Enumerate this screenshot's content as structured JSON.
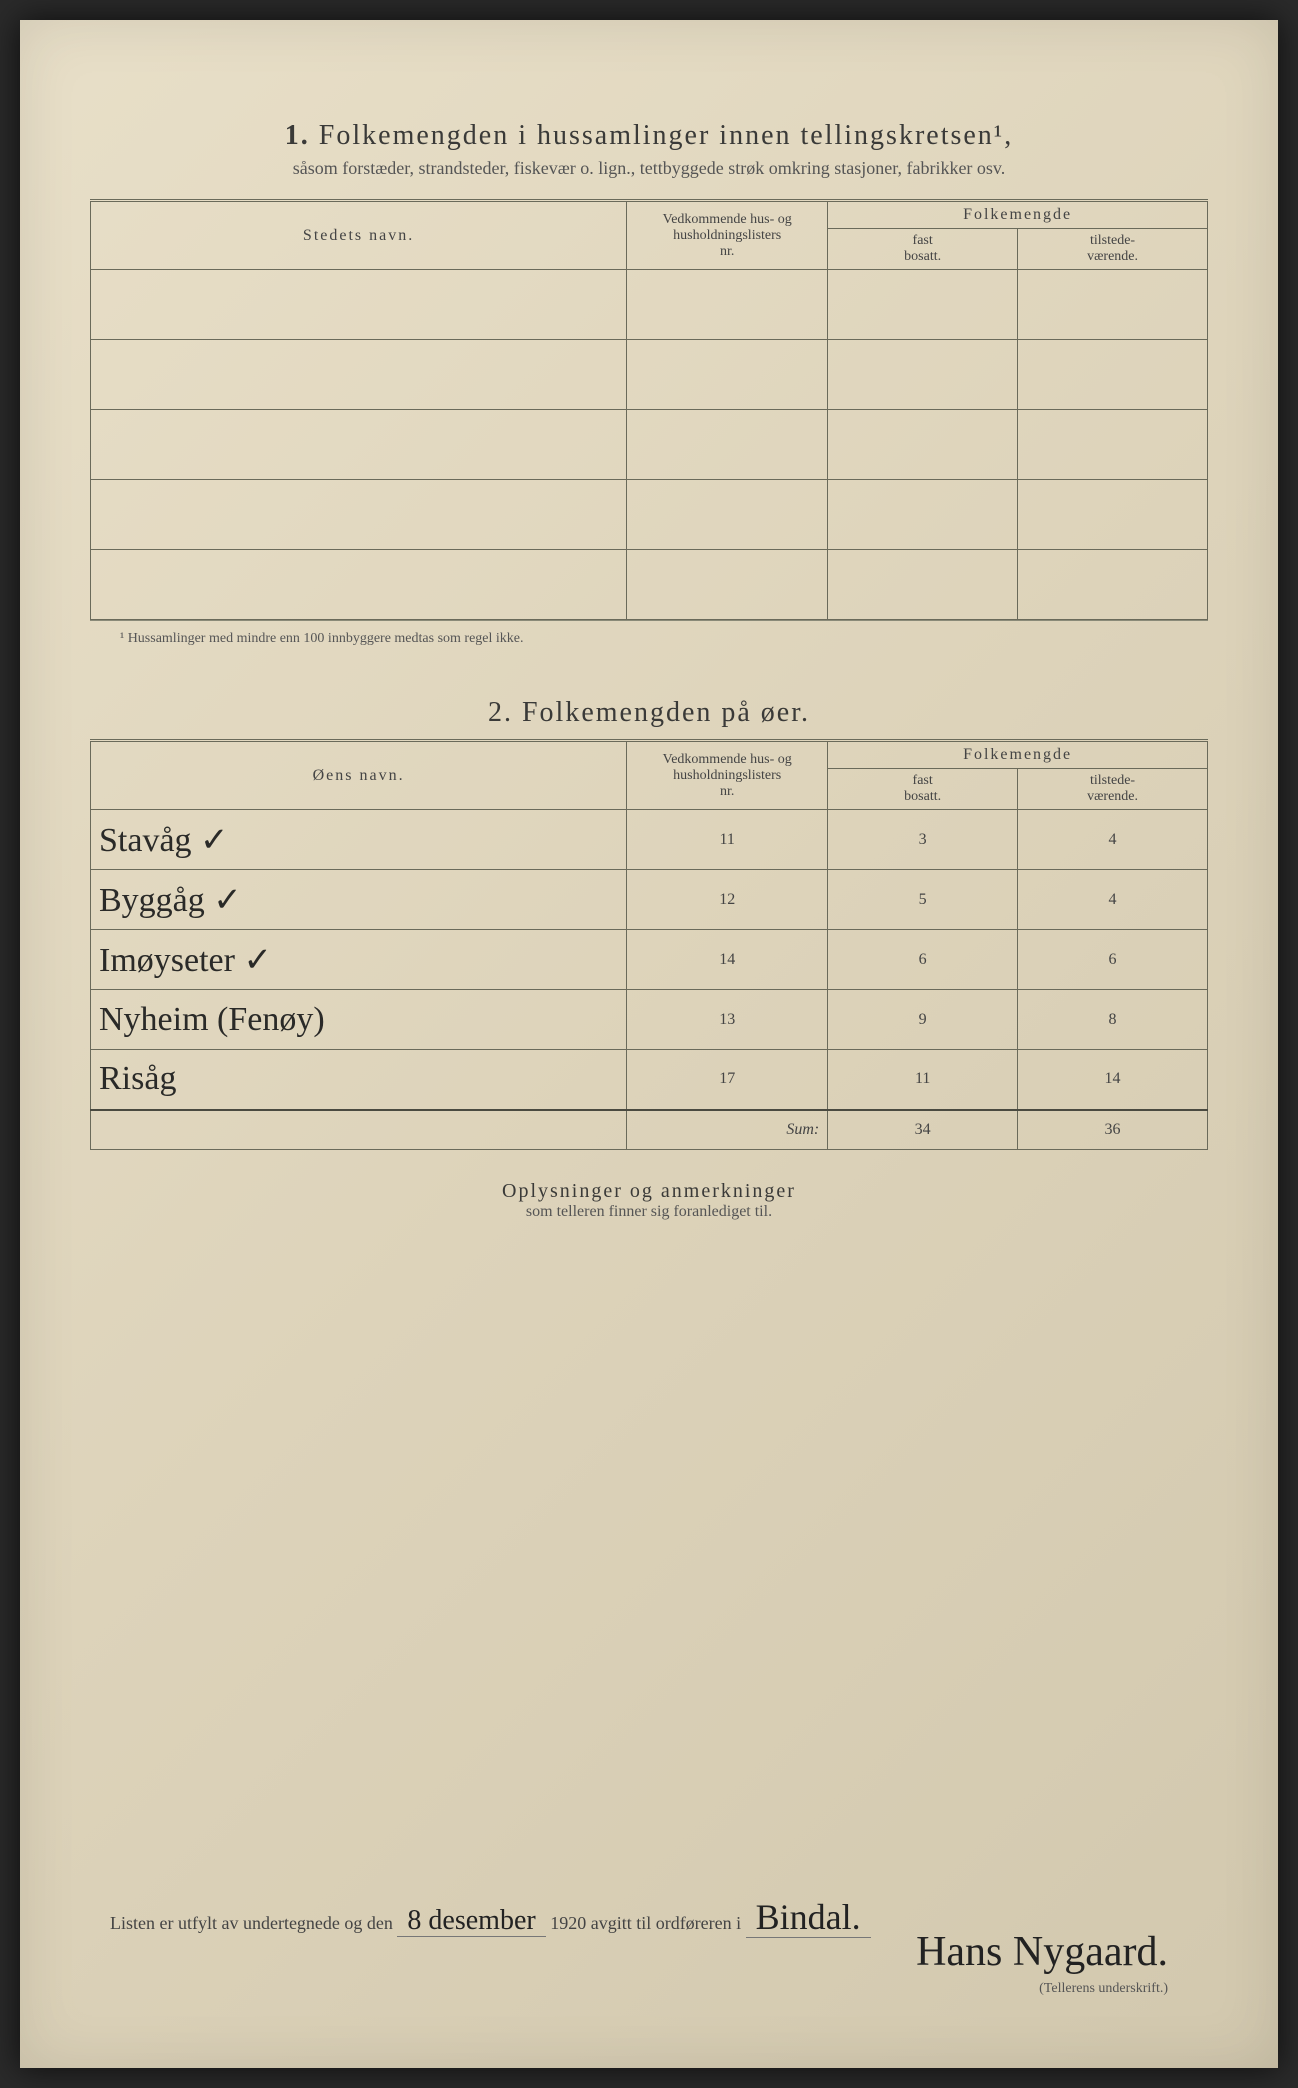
{
  "section1": {
    "number": "1.",
    "title": "Folkemengden i hussamlinger innen tellingskretsen¹,",
    "subtitle": "såsom forstæder, strandsteder, fiskevær o. lign., tettbyggede strøk omkring stasjoner, fabrikker osv.",
    "columns": {
      "name": "Stedets navn.",
      "nr_line1": "Vedkommende hus- og",
      "nr_line2": "husholdningslisters",
      "nr_line3": "nr.",
      "pop_group": "Folkemengde",
      "fast_line1": "fast",
      "fast_line2": "bosatt.",
      "til_line1": "tilstede-",
      "til_line2": "værende."
    },
    "footnote": "¹ Hussamlinger med mindre enn 100 innbyggere medtas som regel ikke."
  },
  "section2": {
    "number": "2.",
    "title": "Folkemengden på øer.",
    "columns": {
      "name": "Øens navn.",
      "nr_line1": "Vedkommende hus- og",
      "nr_line2": "husholdningslisters",
      "nr_line3": "nr.",
      "pop_group": "Folkemengde",
      "fast_line1": "fast",
      "fast_line2": "bosatt.",
      "til_line1": "tilstede-",
      "til_line2": "værende."
    },
    "rows": [
      {
        "name": "Stavåg ✓",
        "nr": "11",
        "fast": "3",
        "til": "4"
      },
      {
        "name": "Byggåg ✓",
        "nr": "12",
        "fast": "5",
        "til": "4"
      },
      {
        "name": "Imøyseter ✓",
        "nr": "14",
        "fast": "6",
        "til": "6"
      },
      {
        "name": "Nyheim (Fenøy)",
        "nr": "13",
        "fast": "9",
        "til": "8"
      },
      {
        "name": "Risåg",
        "nr": "17",
        "fast": "11",
        "til": "14"
      }
    ],
    "sum": {
      "label": "Sum:",
      "fast": "34",
      "til": "36"
    }
  },
  "remarks": {
    "title": "Oplysninger og anmerkninger",
    "subtitle": "som telleren finner sig foranlediget til."
  },
  "footer": {
    "text_before": "Listen er utfylt av undertegnede og den",
    "date": "8 desember",
    "year": "1920",
    "text_mid": "avgitt til ordføreren i",
    "place": "Bindal.",
    "signature": "Hans Nygaard.",
    "sig_caption": "(Tellerens underskrift.)"
  },
  "styling": {
    "paper_bg": "#e8dfc8",
    "border_color": "#6a6a5a",
    "text_color": "#3a3a38",
    "handwriting_color": "#2a2a28",
    "title_fontsize": 28,
    "body_fontsize": 16,
    "handwriting_fontsize": 34
  }
}
